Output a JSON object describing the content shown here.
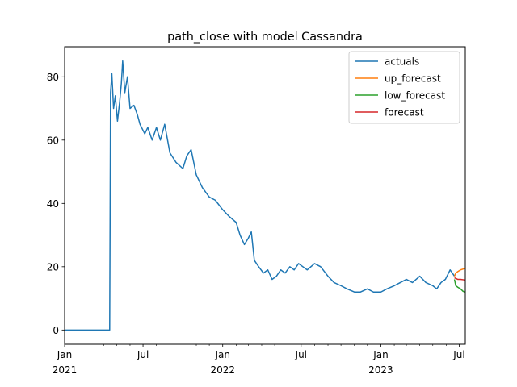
{
  "chart_data": {
    "type": "line",
    "title": "path_close with model Cassandra",
    "xlabel": "",
    "ylabel": "",
    "x_range": [
      "2021-01-01",
      "2023-07-15"
    ],
    "ylim": [
      -4.5,
      89.5
    ],
    "y_ticks": [
      0,
      20,
      40,
      60,
      80
    ],
    "x_ticks": [
      {
        "date": "2021-01-01",
        "label": "Jan",
        "sublabel": "2021"
      },
      {
        "date": "2021-07-01",
        "label": "Jul",
        "sublabel": ""
      },
      {
        "date": "2022-01-01",
        "label": "Jan",
        "sublabel": "2022"
      },
      {
        "date": "2022-07-01",
        "label": "Jul",
        "sublabel": ""
      },
      {
        "date": "2023-01-01",
        "label": "Jan",
        "sublabel": "2023"
      },
      {
        "date": "2023-07-01",
        "label": "Jul",
        "sublabel": ""
      }
    ],
    "grid": false,
    "legend_position": "top-right",
    "series": [
      {
        "name": "actuals",
        "color": "#1f77b4",
        "points": [
          [
            "2021-01-01",
            0
          ],
          [
            "2021-04-15",
            0
          ],
          [
            "2021-04-17",
            75
          ],
          [
            "2021-04-20",
            81
          ],
          [
            "2021-04-24",
            70
          ],
          [
            "2021-04-28",
            74
          ],
          [
            "2021-05-03",
            66
          ],
          [
            "2021-05-08",
            72
          ],
          [
            "2021-05-12",
            78
          ],
          [
            "2021-05-15",
            85
          ],
          [
            "2021-05-20",
            75
          ],
          [
            "2021-05-26",
            80
          ],
          [
            "2021-06-01",
            70
          ],
          [
            "2021-06-10",
            71
          ],
          [
            "2021-06-18",
            68
          ],
          [
            "2021-06-24",
            65
          ],
          [
            "2021-07-05",
            62
          ],
          [
            "2021-07-12",
            64
          ],
          [
            "2021-07-22",
            60
          ],
          [
            "2021-08-01",
            64
          ],
          [
            "2021-08-10",
            60
          ],
          [
            "2021-08-20",
            65
          ],
          [
            "2021-09-01",
            56
          ],
          [
            "2021-09-15",
            53
          ],
          [
            "2021-10-01",
            51
          ],
          [
            "2021-10-10",
            55
          ],
          [
            "2021-10-20",
            57
          ],
          [
            "2021-11-01",
            49
          ],
          [
            "2021-11-15",
            45
          ],
          [
            "2021-12-01",
            42
          ],
          [
            "2021-12-15",
            41
          ],
          [
            "2022-01-01",
            38
          ],
          [
            "2022-01-15",
            36
          ],
          [
            "2022-02-01",
            34
          ],
          [
            "2022-02-10",
            30
          ],
          [
            "2022-02-20",
            27
          ],
          [
            "2022-03-01",
            29
          ],
          [
            "2022-03-08",
            31
          ],
          [
            "2022-03-15",
            22
          ],
          [
            "2022-03-25",
            20
          ],
          [
            "2022-04-05",
            18
          ],
          [
            "2022-04-15",
            19
          ],
          [
            "2022-04-25",
            16
          ],
          [
            "2022-05-05",
            17
          ],
          [
            "2022-05-15",
            19
          ],
          [
            "2022-05-25",
            18
          ],
          [
            "2022-06-05",
            20
          ],
          [
            "2022-06-15",
            19
          ],
          [
            "2022-06-25",
            21
          ],
          [
            "2022-07-05",
            20
          ],
          [
            "2022-07-15",
            19
          ],
          [
            "2022-08-01",
            21
          ],
          [
            "2022-08-15",
            20
          ],
          [
            "2022-09-01",
            17
          ],
          [
            "2022-09-15",
            15
          ],
          [
            "2022-10-01",
            14
          ],
          [
            "2022-10-15",
            13
          ],
          [
            "2022-11-01",
            12
          ],
          [
            "2022-11-15",
            12
          ],
          [
            "2022-12-01",
            13
          ],
          [
            "2022-12-15",
            12
          ],
          [
            "2023-01-01",
            12
          ],
          [
            "2023-01-15",
            13
          ],
          [
            "2023-02-01",
            14
          ],
          [
            "2023-02-15",
            15
          ],
          [
            "2023-03-01",
            16
          ],
          [
            "2023-03-15",
            15
          ],
          [
            "2023-04-01",
            17
          ],
          [
            "2023-04-15",
            15
          ],
          [
            "2023-05-01",
            14
          ],
          [
            "2023-05-10",
            13
          ],
          [
            "2023-05-20",
            15
          ],
          [
            "2023-05-30",
            16
          ],
          [
            "2023-06-10",
            19
          ],
          [
            "2023-06-20",
            17
          ]
        ]
      },
      {
        "name": "up_forecast",
        "color": "#ff7f0e",
        "points": [
          [
            "2023-06-20",
            17
          ],
          [
            "2023-06-23",
            18
          ],
          [
            "2023-06-28",
            18.5
          ],
          [
            "2023-07-04",
            19
          ],
          [
            "2023-07-15",
            19.5
          ]
        ]
      },
      {
        "name": "low_forecast",
        "color": "#2ca02c",
        "points": [
          [
            "2023-06-20",
            16
          ],
          [
            "2023-06-23",
            14
          ],
          [
            "2023-06-28",
            13.5
          ],
          [
            "2023-07-04",
            13
          ],
          [
            "2023-07-10",
            12.2
          ],
          [
            "2023-07-15",
            12
          ]
        ]
      },
      {
        "name": "forecast",
        "color": "#d62728",
        "points": [
          [
            "2023-06-20",
            16.5
          ],
          [
            "2023-06-28",
            16
          ],
          [
            "2023-07-04",
            16
          ],
          [
            "2023-07-15",
            15.8
          ]
        ]
      }
    ]
  }
}
